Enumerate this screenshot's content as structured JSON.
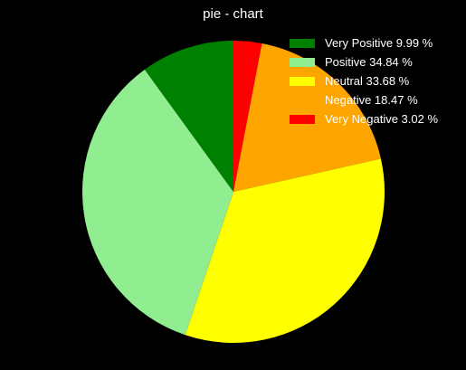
{
  "chart_data": {
    "type": "pie",
    "title": "pie - chart",
    "start_angle_deg": 90,
    "direction": "clockwise",
    "legend_position": "top-right",
    "slices": [
      {
        "label": "Very Negative",
        "value": 3.02,
        "legend_text": "Very Negative 3.02 %",
        "color": "#ff0000"
      },
      {
        "label": "Negative",
        "value": 18.47,
        "legend_text": "Negative 18.47 %",
        "color": "#ffa500"
      },
      {
        "label": "Neutral",
        "value": 33.68,
        "legend_text": "Neutral 33.68 %",
        "color": "#ffff00"
      },
      {
        "label": "Positive",
        "value": 34.84,
        "legend_text": "Positive 34.84 %",
        "color": "#90ee90"
      },
      {
        "label": "Very Positive",
        "value": 9.99,
        "legend_text": "Very Positive 9.99 %",
        "color": "#008000"
      }
    ],
    "legend_order": [
      "Very Positive",
      "Positive",
      "Neutral",
      "Negative",
      "Very Negative"
    ]
  },
  "colors": {
    "background": "#000000",
    "text": "#ffffff"
  }
}
